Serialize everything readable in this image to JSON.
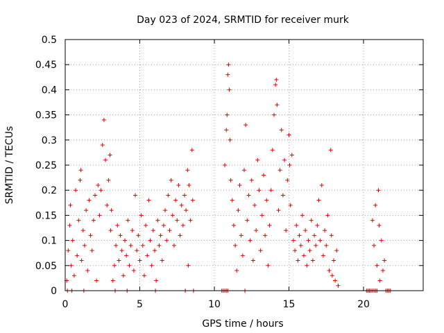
{
  "chart_data": {
    "type": "scatter",
    "title": "Day 023 of 2024, SRMTID for receiver murk",
    "xlabel": "GPS time / hours",
    "ylabel": "SRMTID / TECUs",
    "xlim": [
      0,
      24
    ],
    "ylim": [
      0,
      0.5
    ],
    "xticks": [
      0,
      5,
      10,
      15,
      20
    ],
    "yticks": [
      0,
      0.05,
      0.1,
      0.15,
      0.2,
      0.25,
      0.3,
      0.35,
      0.4,
      0.45,
      0.5
    ],
    "grid": true,
    "marker": "plus",
    "color": "#e00000",
    "series": [
      {
        "points": [
          [
            0.1,
            0.02
          ],
          [
            0.2,
            0.08
          ],
          [
            0.3,
            0.13
          ],
          [
            0.35,
            0.17
          ],
          [
            0.4,
            0.05
          ],
          [
            0.5,
            0.1
          ],
          [
            0.6,
            0.03
          ],
          [
            0.7,
            0.2
          ],
          [
            0.8,
            0.07
          ],
          [
            0.9,
            0.14
          ],
          [
            1.0,
            0.22
          ],
          [
            1.05,
            0.24
          ],
          [
            1.1,
            0.06
          ],
          [
            1.2,
            0.12
          ],
          [
            1.3,
            0.09
          ],
          [
            1.4,
            0.16
          ],
          [
            1.5,
            0.04
          ],
          [
            1.6,
            0.18
          ],
          [
            1.7,
            0.11
          ],
          [
            1.8,
            0.08
          ],
          [
            1.9,
            0.14
          ],
          [
            2.0,
            0.19
          ],
          [
            2.1,
            0.02
          ],
          [
            2.2,
            0.21
          ],
          [
            2.3,
            0.15
          ],
          [
            2.4,
            0.2
          ],
          [
            2.5,
            0.29
          ],
          [
            2.6,
            0.34
          ],
          [
            2.7,
            0.26
          ],
          [
            2.8,
            0.17
          ],
          [
            2.9,
            0.22
          ],
          [
            3.0,
            0.27
          ],
          [
            3.05,
            0.12
          ],
          [
            3.1,
            0.16
          ],
          [
            3.2,
            0.02
          ],
          [
            3.3,
            0.05
          ],
          [
            3.4,
            0.09
          ],
          [
            3.5,
            0.13
          ],
          [
            3.6,
            0.06
          ],
          [
            3.7,
            0.11
          ],
          [
            3.8,
            0.08
          ],
          [
            3.9,
            0.03
          ],
          [
            4.0,
            0.1
          ],
          [
            4.1,
            0.07
          ],
          [
            4.2,
            0.14
          ],
          [
            4.3,
            0.05
          ],
          [
            4.4,
            0.09
          ],
          [
            4.5,
            0.12
          ],
          [
            4.6,
            0.04
          ],
          [
            4.7,
            0.19
          ],
          [
            4.8,
            0.08
          ],
          [
            4.9,
            0.11
          ],
          [
            5.0,
            0.06
          ],
          [
            5.1,
            0.15
          ],
          [
            5.2,
            0.09
          ],
          [
            5.3,
            0.03
          ],
          [
            5.4,
            0.13
          ],
          [
            5.5,
            0.07
          ],
          [
            5.6,
            0.18
          ],
          [
            5.7,
            0.1
          ],
          [
            5.8,
            0.05
          ],
          [
            5.9,
            0.12
          ],
          [
            6.0,
            0.08
          ],
          [
            6.1,
            0.02
          ],
          [
            6.2,
            0.14
          ],
          [
            6.3,
            0.09
          ],
          [
            6.4,
            0.11
          ],
          [
            6.5,
            0.06
          ],
          [
            6.6,
            0.13
          ],
          [
            6.7,
            0.16
          ],
          [
            6.8,
            0.1
          ],
          [
            6.9,
            0.19
          ],
          [
            7.0,
            0.12
          ],
          [
            7.1,
            0.22
          ],
          [
            7.2,
            0.15
          ],
          [
            7.3,
            0.09
          ],
          [
            7.4,
            0.18
          ],
          [
            7.5,
            0.14
          ],
          [
            7.6,
            0.21
          ],
          [
            7.7,
            0.11
          ],
          [
            7.8,
            0.17
          ],
          [
            7.9,
            0.13
          ],
          [
            8.0,
            0.19
          ],
          [
            8.1,
            0.16
          ],
          [
            8.2,
            0.24
          ],
          [
            8.25,
            0.05
          ],
          [
            8.3,
            0.21
          ],
          [
            8.4,
            0.14
          ],
          [
            8.5,
            0.28
          ],
          [
            8.55,
            0.18
          ],
          [
            10.7,
            0.25
          ],
          [
            10.8,
            0.32
          ],
          [
            10.85,
            0.35
          ],
          [
            10.9,
            0.43
          ],
          [
            10.95,
            0.45
          ],
          [
            11.0,
            0.4
          ],
          [
            11.05,
            0.3
          ],
          [
            11.1,
            0.22
          ],
          [
            11.2,
            0.18
          ],
          [
            11.3,
            0.13
          ],
          [
            11.4,
            0.09
          ],
          [
            11.5,
            0.04
          ],
          [
            11.6,
            0.16
          ],
          [
            11.7,
            0.21
          ],
          [
            11.8,
            0.11
          ],
          [
            11.9,
            0.07
          ],
          [
            12.0,
            0.24
          ],
          [
            12.1,
            0.33
          ],
          [
            12.2,
            0.14
          ],
          [
            12.3,
            0.19
          ],
          [
            12.4,
            0.1
          ],
          [
            12.5,
            0.22
          ],
          [
            12.6,
            0.06
          ],
          [
            12.7,
            0.17
          ],
          [
            12.8,
            0.12
          ],
          [
            12.9,
            0.26
          ],
          [
            13.0,
            0.2
          ],
          [
            13.1,
            0.08
          ],
          [
            13.2,
            0.15
          ],
          [
            13.3,
            0.23
          ],
          [
            13.4,
            0.11
          ],
          [
            13.5,
            0.18
          ],
          [
            13.6,
            0.05
          ],
          [
            13.7,
            0.13
          ],
          [
            13.8,
            0.2
          ],
          [
            13.9,
            0.28
          ],
          [
            14.0,
            0.35
          ],
          [
            14.1,
            0.41
          ],
          [
            14.15,
            0.42
          ],
          [
            14.2,
            0.37
          ],
          [
            14.3,
            0.16
          ],
          [
            14.4,
            0.24
          ],
          [
            14.5,
            0.32
          ],
          [
            14.6,
            0.19
          ],
          [
            14.7,
            0.26
          ],
          [
            14.8,
            0.12
          ],
          [
            14.9,
            0.22
          ],
          [
            15.0,
            0.31
          ],
          [
            15.05,
            0.25
          ],
          [
            15.1,
            0.17
          ],
          [
            15.2,
            0.27
          ],
          [
            15.3,
            0.1
          ],
          [
            15.4,
            0.08
          ],
          [
            15.5,
            0.13
          ],
          [
            15.6,
            0.06
          ],
          [
            15.7,
            0.11
          ],
          [
            15.8,
            0.09
          ],
          [
            15.9,
            0.15
          ],
          [
            16.0,
            0.07
          ],
          [
            16.1,
            0.12
          ],
          [
            16.2,
            0.05
          ],
          [
            16.3,
            0.1
          ],
          [
            16.4,
            0.08
          ],
          [
            16.5,
            0.14
          ],
          [
            16.6,
            0.06
          ],
          [
            16.7,
            0.11
          ],
          [
            16.8,
            0.09
          ],
          [
            16.9,
            0.13
          ],
          [
            17.0,
            0.18
          ],
          [
            17.1,
            0.1
          ],
          [
            17.2,
            0.21
          ],
          [
            17.3,
            0.07
          ],
          [
            17.4,
            0.12
          ],
          [
            17.5,
            0.09
          ],
          [
            17.6,
            0.15
          ],
          [
            17.7,
            0.04
          ],
          [
            17.8,
            0.28
          ],
          [
            17.85,
            0.11
          ],
          [
            17.9,
            0.03
          ],
          [
            18.0,
            0.06
          ],
          [
            18.1,
            0.02
          ],
          [
            18.2,
            0.08
          ],
          [
            18.3,
            0.01
          ],
          [
            20.6,
            0.14
          ],
          [
            20.7,
            0.09
          ],
          [
            20.8,
            0.17
          ],
          [
            20.9,
            0.05
          ],
          [
            21.0,
            0.2
          ],
          [
            21.05,
            0.13
          ],
          [
            21.1,
            0.02
          ],
          [
            21.2,
            0.1
          ],
          [
            21.3,
            0.04
          ],
          [
            21.4,
            0.06
          ],
          [
            0.15,
            0
          ],
          [
            0.45,
            0
          ],
          [
            1.25,
            0
          ],
          [
            3.35,
            0
          ],
          [
            4.15,
            0
          ],
          [
            6.05,
            0
          ],
          [
            8.05,
            0
          ],
          [
            8.6,
            0
          ],
          [
            10.5,
            0
          ],
          [
            10.6,
            0
          ],
          [
            10.7,
            0
          ],
          [
            10.8,
            0
          ],
          [
            10.9,
            0
          ],
          [
            12.05,
            0
          ],
          [
            20.2,
            0
          ],
          [
            20.3,
            0
          ],
          [
            20.4,
            0
          ],
          [
            20.5,
            0
          ],
          [
            20.6,
            0
          ],
          [
            20.7,
            0
          ],
          [
            20.8,
            0
          ],
          [
            20.9,
            0
          ],
          [
            21.5,
            0
          ],
          [
            21.6,
            0
          ],
          [
            21.7,
            0
          ],
          [
            21.8,
            0
          ]
        ]
      }
    ]
  }
}
